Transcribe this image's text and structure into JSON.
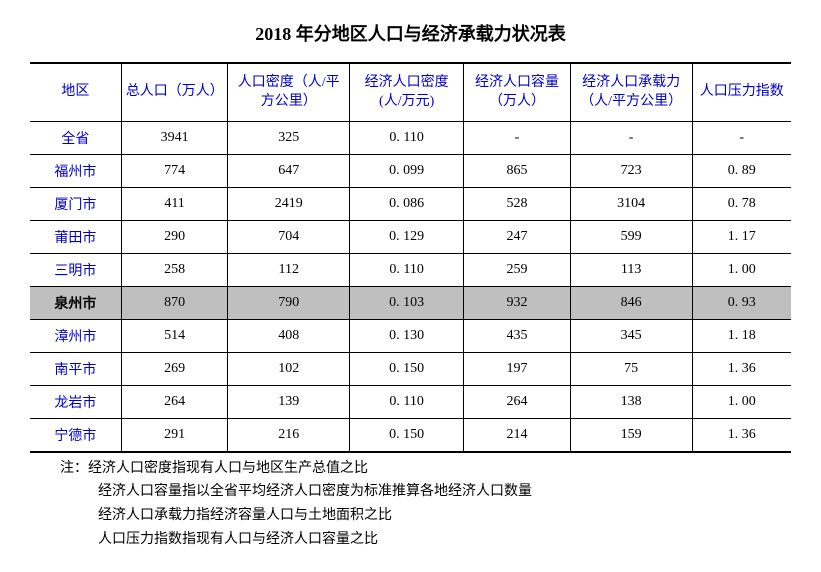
{
  "title": "2018 年分地区人口与经济承载力状况表",
  "table": {
    "columns": [
      "地区",
      "总人口（万人）",
      "人口密度（人/平方公里）",
      "经济人口密度(人/万元)",
      "经济人口容量（万人）",
      "经济人口承载力（人/平方公里）",
      "人口压力指数"
    ],
    "column_widths": [
      "12%",
      "14%",
      "16%",
      "15%",
      "14%",
      "16%",
      "13%"
    ],
    "header_color": "#0000cc",
    "first_col_color": "#0000cc",
    "highlight_bg": "#bfbfbf",
    "highlight_row_index": 5,
    "rows": [
      {
        "cells": [
          "全省",
          "3941",
          "325",
          "0. 110",
          "-",
          "-",
          "-"
        ]
      },
      {
        "cells": [
          "福州市",
          "774",
          "647",
          "0. 099",
          "865",
          "723",
          "0. 89"
        ]
      },
      {
        "cells": [
          "厦门市",
          "411",
          "2419",
          "0. 086",
          "528",
          "3104",
          "0. 78"
        ]
      },
      {
        "cells": [
          "莆田市",
          "290",
          "704",
          "0. 129",
          "247",
          "599",
          "1. 17"
        ]
      },
      {
        "cells": [
          "三明市",
          "258",
          "112",
          "0. 110",
          "259",
          "113",
          "1. 00"
        ]
      },
      {
        "cells": [
          "泉州市",
          "870",
          "790",
          "0. 103",
          "932",
          "846",
          "0. 93"
        ]
      },
      {
        "cells": [
          "漳州市",
          "514",
          "408",
          "0. 130",
          "435",
          "345",
          "1. 18"
        ]
      },
      {
        "cells": [
          "南平市",
          "269",
          "102",
          "0. 150",
          "197",
          "75",
          "1. 36"
        ]
      },
      {
        "cells": [
          "龙岩市",
          "264",
          "139",
          "0. 110",
          "264",
          "138",
          "1. 00"
        ]
      },
      {
        "cells": [
          "宁德市",
          "291",
          "216",
          "0. 150",
          "214",
          "159",
          "1. 36"
        ]
      }
    ]
  },
  "notes": {
    "prefix": "注：",
    "lines": [
      "经济人口密度指现有人口与地区生产总值之比",
      "经济人口容量指以全省平均经济人口密度为标准推算各地经济人口数量",
      "经济人口承载力指经济容量人口与土地面积之比",
      "人口压力指数指现有人口与经济人口容量之比"
    ]
  }
}
